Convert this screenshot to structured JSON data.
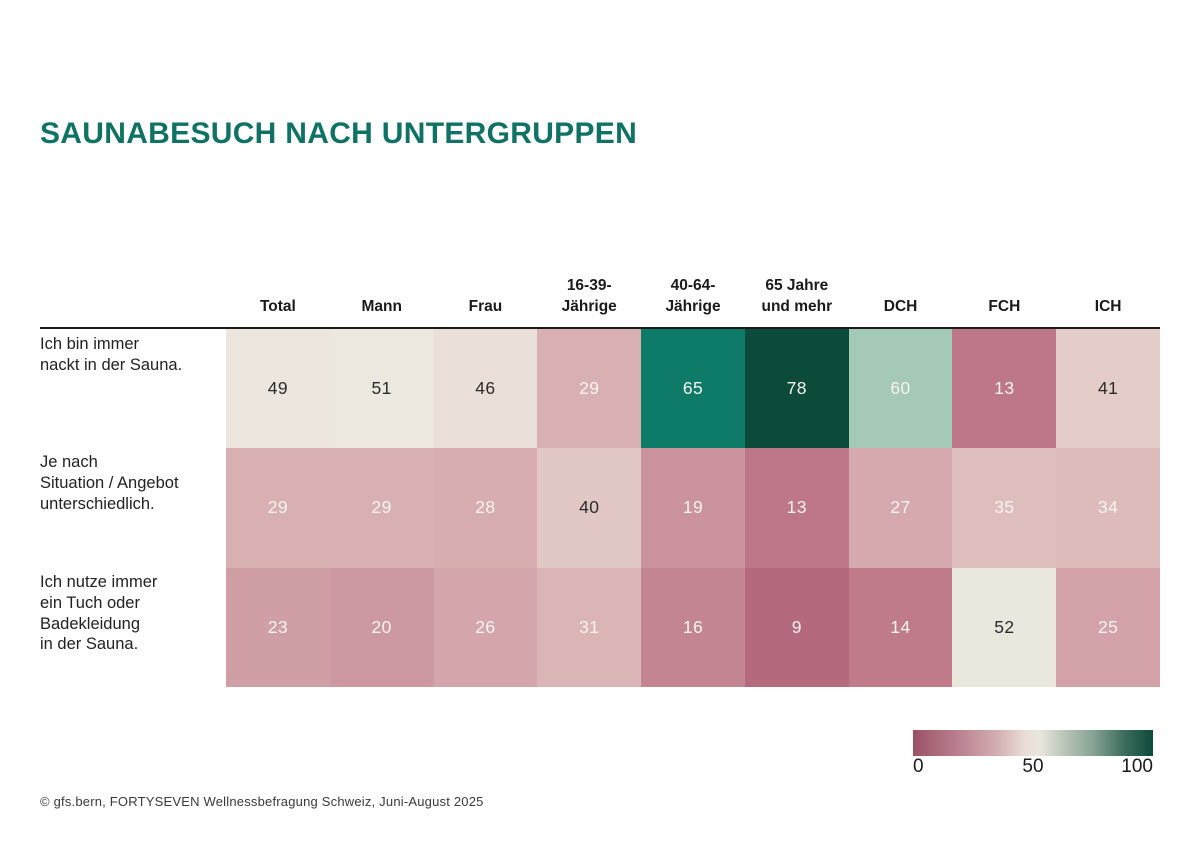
{
  "title": "SAUNABESUCH NACH UNTERGRUPPEN",
  "accent_color": "#0f7265",
  "footer": "© gfs.bern, FORTYSEVEN Wellnessbefragung Schweiz, Juni-August 2025",
  "legend": {
    "min": "0",
    "mid": "50",
    "max": "100"
  },
  "chart_data": {
    "type": "heatmap",
    "title": "SAUNABESUCH NACH UNTERGRUPPEN",
    "columns": [
      "Total",
      "Mann",
      "Frau",
      "16-39-\nJährige",
      "40-64-\nJährige",
      "65 Jahre\nund mehr",
      "DCH",
      "FCH",
      "ICH"
    ],
    "rows": [
      {
        "label": "Ich bin immer\nnackt in der Sauna.",
        "values": [
          49,
          51,
          46,
          29,
          65,
          78,
          60,
          13,
          41
        ]
      },
      {
        "label": "Je nach\nSituation / Angebot\nunterschiedlich.",
        "values": [
          29,
          29,
          28,
          40,
          19,
          13,
          27,
          35,
          34
        ]
      },
      {
        "label": "Ich nutze immer\nein Tuch oder\nBadekleidung\nin der Sauna.",
        "values": [
          23,
          20,
          26,
          31,
          16,
          9,
          14,
          52,
          25
        ]
      }
    ],
    "scale": {
      "min": 0,
      "mid": 50,
      "max": 100
    },
    "legend_position": "bottom-right",
    "colormap_stops": [
      [
        0,
        "#9b5264"
      ],
      [
        9,
        "#b5697c"
      ],
      [
        14,
        "#c07b8b"
      ],
      [
        20,
        "#cc98a1"
      ],
      [
        25,
        "#d2a2a8"
      ],
      [
        29,
        "#d8b0b2"
      ],
      [
        31,
        "#dbb5b6"
      ],
      [
        35,
        "#debdbd"
      ],
      [
        40,
        "#e2c8c4"
      ],
      [
        46,
        "#ebdfda"
      ],
      [
        50,
        "#eee8e1"
      ],
      [
        52,
        "#eae7de"
      ],
      [
        60,
        "#a5c9b7"
      ],
      [
        65,
        "#0e7a68"
      ],
      [
        78,
        "#0c4a3b"
      ],
      [
        100,
        "#083a2e"
      ]
    ],
    "legend_gradient": [
      "#9b5264 0%",
      "#bb8392 20%",
      "#d3aeb0 35%",
      "#eadfd6 47%",
      "#e9e6db 53%",
      "#b9c6b8 63%",
      "#87a394 75%",
      "#3c6d5c 88%",
      "#0e4a3d 100%"
    ],
    "text_dark": "#2b2b2b",
    "text_light": "#f7f3ef"
  },
  "layout": {
    "row_label_tops": [
      334,
      452,
      572
    ]
  }
}
